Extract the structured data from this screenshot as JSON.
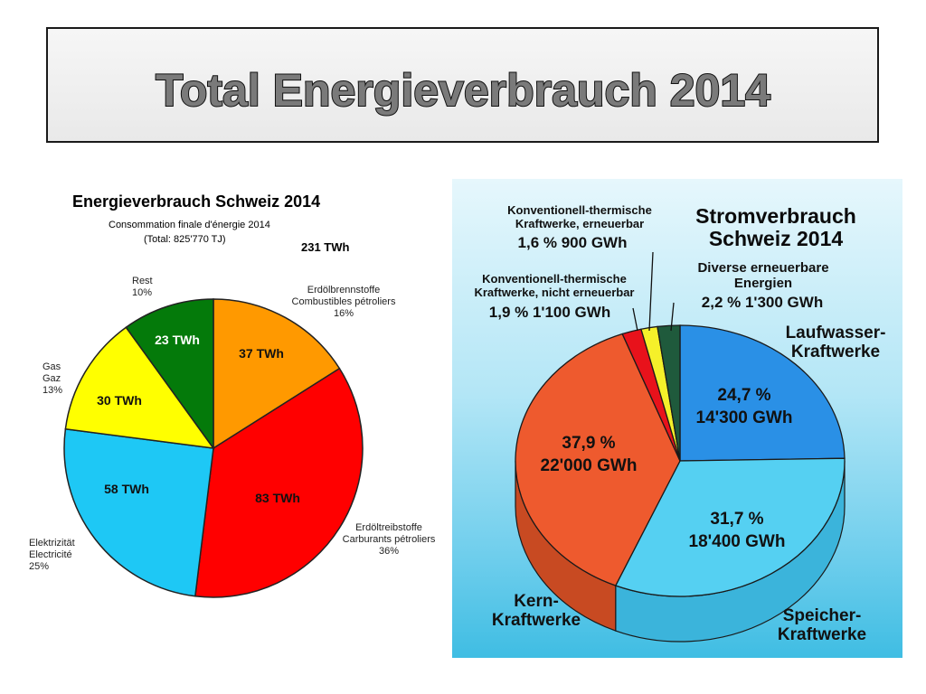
{
  "slide": {
    "title": "Total Energieverbrauch 2014"
  },
  "left_chart": {
    "title": "Energieverbrauch Schweiz 2014",
    "subtitle_1": "Consommation finale d'énergie 2014",
    "subtitle_2": "(Total: 825'770 TJ)",
    "total": "231 TWh"
  },
  "right_chart": {
    "title_line_1": "Stromverbrauch",
    "title_line_2": "Schweiz 2014"
  },
  "chart_data": [
    {
      "type": "pie",
      "title": "Energieverbrauch Schweiz 2014",
      "subtitle": "Consommation finale d'énergie 2014 (Total: 825'770 TJ)",
      "unit": "TWh",
      "total": 231,
      "slices": [
        {
          "label_lines": [
            "Erdölbrennstoffe",
            "Combustibles pétroliers",
            "16%"
          ],
          "value_label": "37 TWh",
          "value": 37,
          "percent": 16,
          "color": "#ff9900"
        },
        {
          "label_lines": [
            "Erdöltreibstoffe",
            "Carburants pétroliers",
            "36%"
          ],
          "value_label": "83 TWh",
          "value": 83,
          "percent": 36,
          "color": "#ff0000"
        },
        {
          "label_lines": [
            "Elektrizität",
            "Electricité",
            "25%"
          ],
          "value_label": "58 TWh",
          "value": 58,
          "percent": 25,
          "color": "#1ec8f5"
        },
        {
          "label_lines": [
            "Gas",
            "Gaz",
            "13%"
          ],
          "value_label": "30 TWh",
          "value": 30,
          "percent": 13,
          "color": "#ffff00"
        },
        {
          "label_lines": [
            "Rest",
            "10%"
          ],
          "value_label": "23 TWh",
          "value": 23,
          "percent": 10,
          "color": "#047a0a"
        }
      ]
    },
    {
      "type": "pie",
      "title": "Stromverbrauch Schweiz 2014",
      "unit": "GWh",
      "slices": [
        {
          "name_lines": [
            "Laufwasser-",
            "Kraftwerke"
          ],
          "value_lines": [
            "24,7 %",
            "14'300 GWh"
          ],
          "percent": 24.7,
          "gwh": 14300,
          "color": "#2a90e6"
        },
        {
          "name_lines": [
            "Speicher-",
            "Kraftwerke"
          ],
          "value_lines": [
            "31,7 %",
            "18'400 GWh"
          ],
          "percent": 31.7,
          "gwh": 18400,
          "color": "#55d0f2"
        },
        {
          "name_lines": [
            "Kern-",
            "Kraftwerke"
          ],
          "value_lines": [
            "37,9 %",
            "22'000 GWh"
          ],
          "percent": 37.9,
          "gwh": 22000,
          "color": "#ee5a2e"
        },
        {
          "name_lines": [
            "Konventionell-thermische",
            "Kraftwerke, nicht erneuerbar"
          ],
          "value_lines": [
            "1,9 %  1'100 GWh"
          ],
          "percent": 1.9,
          "gwh": 1100,
          "color": "#e8121b"
        },
        {
          "name_lines": [
            "Konventionell-thermische",
            "Kraftwerke, erneuerbar"
          ],
          "value_lines": [
            "1,6 %  900 GWh"
          ],
          "percent": 1.6,
          "gwh": 900,
          "color": "#f5f02a"
        },
        {
          "name_lines": [
            "Diverse erneuerbare",
            "Energien"
          ],
          "value_lines": [
            "2,2 %  1'300 GWh"
          ],
          "percent": 2.2,
          "gwh": 1300,
          "color": "#1f5a3c"
        }
      ]
    }
  ]
}
